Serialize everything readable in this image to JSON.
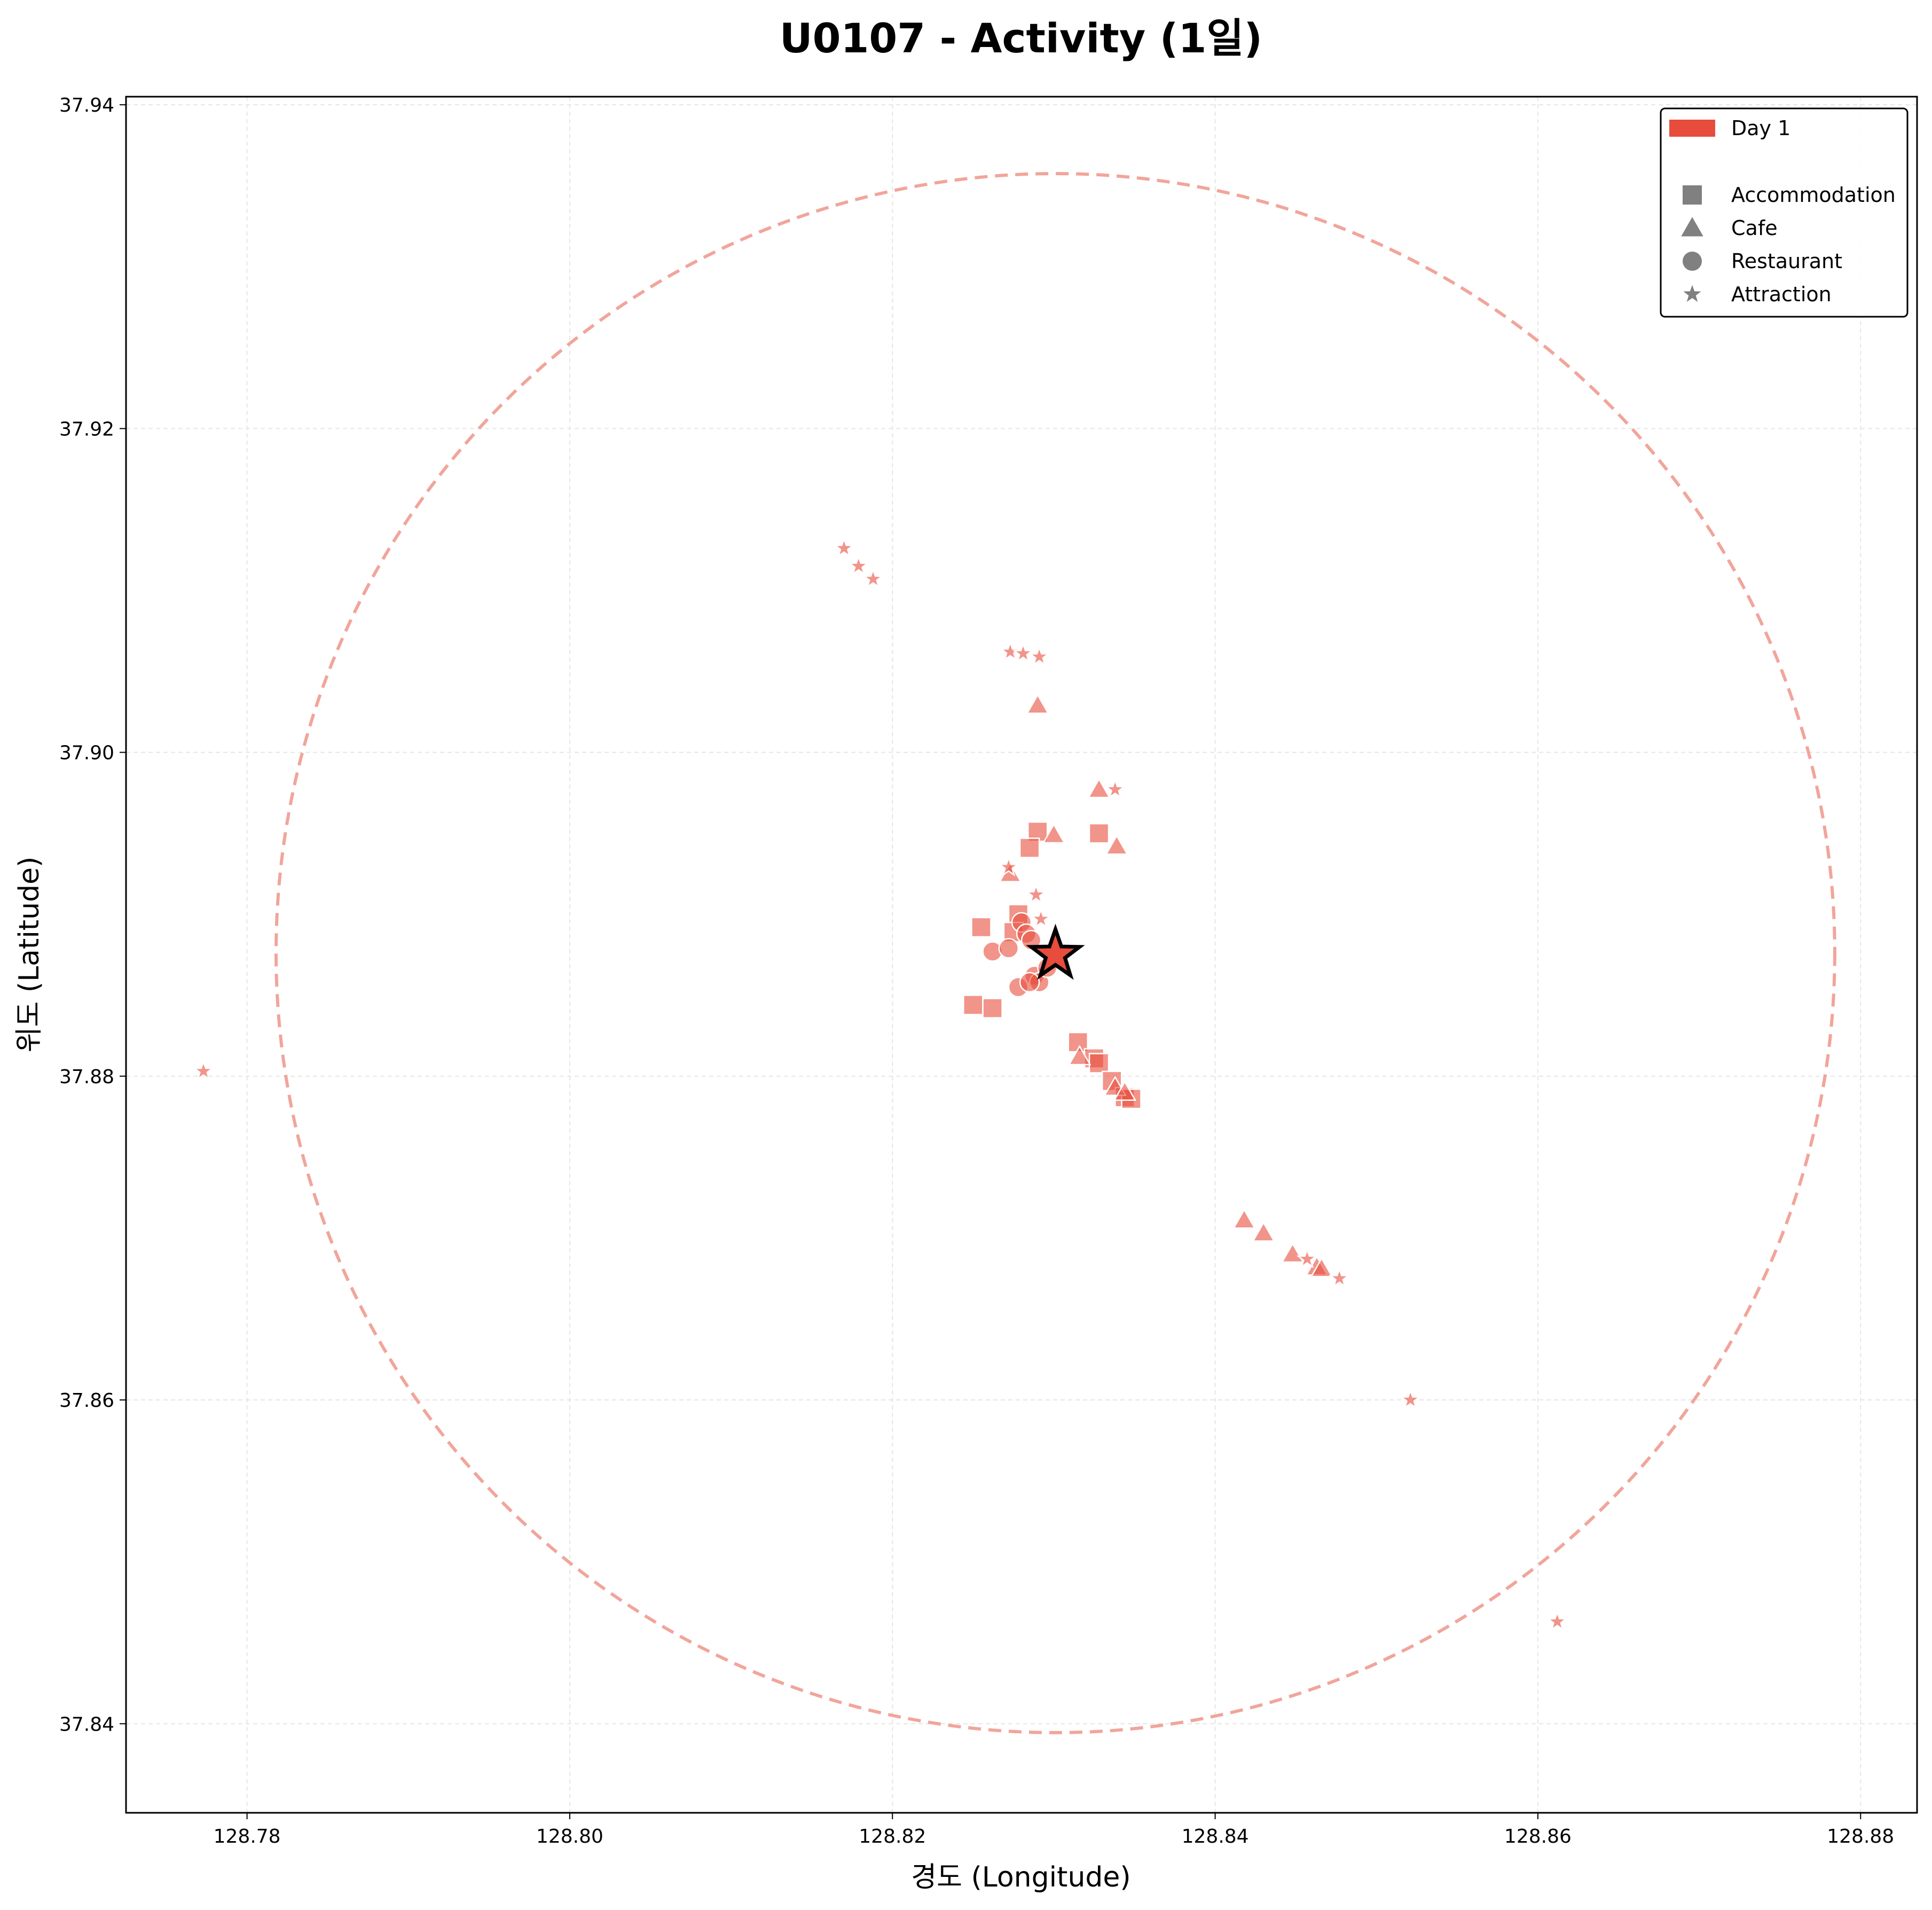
{
  "chart_data": {
    "type": "scatter",
    "title": "U0107 - Activity (1일)",
    "xlabel": "경도 (Longitude)",
    "ylabel": "위도 (Latitude)",
    "xlim": [
      128.7725,
      128.8835
    ],
    "ylim": [
      37.8345,
      37.9405
    ],
    "x_ticks": [
      "128.78",
      "128.80",
      "128.82",
      "128.84",
      "128.86",
      "128.88"
    ],
    "x_tick_values": [
      128.78,
      128.8,
      128.82,
      128.84,
      128.86,
      128.88
    ],
    "y_ticks": [
      "37.84",
      "37.86",
      "37.88",
      "37.90",
      "37.92",
      "37.94"
    ],
    "y_tick_values": [
      37.84,
      37.86,
      37.88,
      37.9,
      37.92,
      37.94
    ],
    "grid": true,
    "legend_position": "top-right",
    "colors": {
      "day1": "#e74c3c",
      "legend_marker": "#808080",
      "circle": "#f1a59b"
    },
    "legend": {
      "day_entries": [
        "Day 1"
      ],
      "category_entries": [
        {
          "label": "Accommodation",
          "marker": "square"
        },
        {
          "label": "Cafe",
          "marker": "triangle"
        },
        {
          "label": "Restaurant",
          "marker": "circle"
        },
        {
          "label": "Attraction",
          "marker": "star"
        }
      ]
    },
    "center": {
      "x": 128.8301,
      "y": 37.8875,
      "marker": "star"
    },
    "radius_circle": {
      "center_x": 128.8301,
      "center_y": 37.8876,
      "radius": 0.0483
    },
    "series": [
      {
        "name": "Day 1",
        "points": [
          {
            "x": 128.8255,
            "y": 37.8892,
            "category": "Accommodation"
          },
          {
            "x": 128.8278,
            "y": 37.89,
            "category": "Accommodation"
          },
          {
            "x": 128.829,
            "y": 37.8951,
            "category": "Accommodation"
          },
          {
            "x": 128.8285,
            "y": 37.8941,
            "category": "Accommodation"
          },
          {
            "x": 128.8328,
            "y": 37.895,
            "category": "Accommodation"
          },
          {
            "x": 128.825,
            "y": 37.8844,
            "category": "Accommodation"
          },
          {
            "x": 128.8262,
            "y": 37.8842,
            "category": "Accommodation"
          },
          {
            "x": 128.8275,
            "y": 37.8889,
            "category": "Accommodation"
          },
          {
            "x": 128.8315,
            "y": 37.8821,
            "category": "Accommodation"
          },
          {
            "x": 128.8325,
            "y": 37.8811,
            "category": "Accommodation"
          },
          {
            "x": 128.8328,
            "y": 37.8808,
            "category": "Accommodation"
          },
          {
            "x": 128.8336,
            "y": 37.8797,
            "category": "Accommodation"
          },
          {
            "x": 128.8344,
            "y": 37.8787,
            "category": "Accommodation"
          },
          {
            "x": 128.8348,
            "y": 37.8786,
            "category": "Accommodation"
          },
          {
            "x": 128.829,
            "y": 37.9029,
            "category": "Cafe"
          },
          {
            "x": 128.8328,
            "y": 37.8977,
            "category": "Cafe"
          },
          {
            "x": 128.83,
            "y": 37.8949,
            "category": "Cafe"
          },
          {
            "x": 128.8339,
            "y": 37.8942,
            "category": "Cafe"
          },
          {
            "x": 128.8273,
            "y": 37.8925,
            "category": "Cafe"
          },
          {
            "x": 128.8316,
            "y": 37.8812,
            "category": "Cafe"
          },
          {
            "x": 128.8338,
            "y": 37.8793,
            "category": "Cafe"
          },
          {
            "x": 128.8344,
            "y": 37.879,
            "category": "Cafe"
          },
          {
            "x": 128.8418,
            "y": 37.8711,
            "category": "Cafe"
          },
          {
            "x": 128.843,
            "y": 37.8703,
            "category": "Cafe"
          },
          {
            "x": 128.8448,
            "y": 37.869,
            "category": "Cafe"
          },
          {
            "x": 128.8463,
            "y": 37.8682,
            "category": "Cafe"
          },
          {
            "x": 128.8466,
            "y": 37.8681,
            "category": "Cafe"
          },
          {
            "x": 128.8262,
            "y": 37.8877,
            "category": "Restaurant"
          },
          {
            "x": 128.8272,
            "y": 37.8879,
            "category": "Restaurant"
          },
          {
            "x": 128.828,
            "y": 37.8895,
            "category": "Restaurant"
          },
          {
            "x": 128.8283,
            "y": 37.8888,
            "category": "Restaurant"
          },
          {
            "x": 128.8286,
            "y": 37.8884,
            "category": "Restaurant"
          },
          {
            "x": 128.8288,
            "y": 37.8862,
            "category": "Restaurant"
          },
          {
            "x": 128.8291,
            "y": 37.8858,
            "category": "Restaurant"
          },
          {
            "x": 128.8278,
            "y": 37.8855,
            "category": "Restaurant"
          },
          {
            "x": 128.8285,
            "y": 37.8858,
            "category": "Restaurant"
          },
          {
            "x": 128.8296,
            "y": 37.8867,
            "category": "Restaurant"
          },
          {
            "x": 128.817,
            "y": 37.9126,
            "category": "Attraction"
          },
          {
            "x": 128.8179,
            "y": 37.9115,
            "category": "Attraction"
          },
          {
            "x": 128.8188,
            "y": 37.9107,
            "category": "Attraction"
          },
          {
            "x": 128.8273,
            "y": 37.9062,
            "category": "Attraction"
          },
          {
            "x": 128.8281,
            "y": 37.9061,
            "category": "Attraction"
          },
          {
            "x": 128.8291,
            "y": 37.9059,
            "category": "Attraction"
          },
          {
            "x": 128.8338,
            "y": 37.8977,
            "category": "Attraction"
          },
          {
            "x": 128.8272,
            "y": 37.8929,
            "category": "Attraction"
          },
          {
            "x": 128.8289,
            "y": 37.8912,
            "category": "Attraction"
          },
          {
            "x": 128.8292,
            "y": 37.8897,
            "category": "Attraction"
          },
          {
            "x": 128.7773,
            "y": 37.8803,
            "category": "Attraction"
          },
          {
            "x": 128.8457,
            "y": 37.8687,
            "category": "Attraction"
          },
          {
            "x": 128.8477,
            "y": 37.8675,
            "category": "Attraction"
          },
          {
            "x": 128.8521,
            "y": 37.86,
            "category": "Attraction"
          },
          {
            "x": 128.8612,
            "y": 37.8463,
            "category": "Attraction"
          }
        ]
      }
    ]
  }
}
